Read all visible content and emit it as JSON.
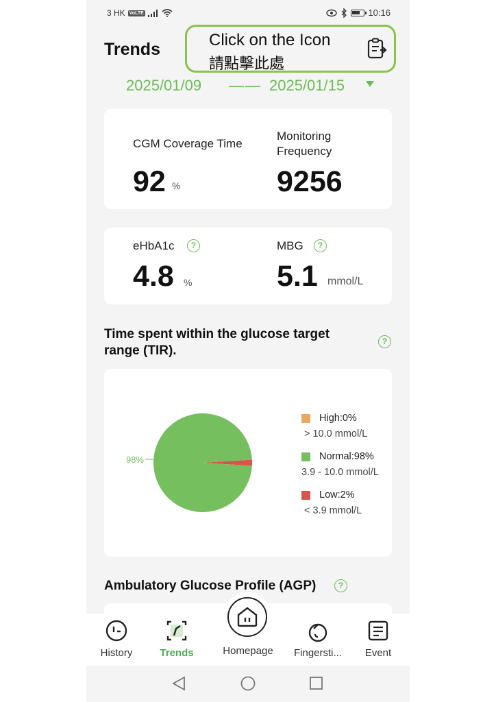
{
  "status_bar": {
    "carrier": "3 HK",
    "volte": "VoLTE",
    "time": "10:16"
  },
  "header": {
    "title": "Trends",
    "callout_line1": "Click on the Icon",
    "callout_line2": "請點擊此處",
    "report_icon": "report-document-icon"
  },
  "date_range": {
    "start": "2025/01/09",
    "separator": "——",
    "end": "2025/01/15"
  },
  "coverage_card": {
    "cgm_label": "CGM Coverage Time",
    "cgm_value": "92",
    "cgm_unit": "%",
    "freq_label_line1": "Monitoring",
    "freq_label_line2": "Frequency",
    "freq_value": "9256"
  },
  "glucose_card": {
    "ehba1c_label": "eHbA1c",
    "ehba1c_value": "4.8",
    "ehba1c_unit": "%",
    "mbg_label": "MBG",
    "mbg_value": "5.1",
    "mbg_unit": "mmol/L",
    "help_glyph": "?"
  },
  "tir": {
    "title": "Time spent within the glucose target range (TIR).",
    "help_glyph": "?"
  },
  "chart_data": {
    "type": "pie",
    "slices": [
      {
        "label": "High:0%",
        "range": "> 10.0 mmol/L",
        "value": 0,
        "color": "#e8a95c"
      },
      {
        "label": "Normal:98%",
        "range": "3.9 - 10.0 mmol/L",
        "value": 98,
        "color": "#76bf5e"
      },
      {
        "label": "Low:2%",
        "range": "< 3.9 mmol/L",
        "value": 2,
        "color": "#d9534a"
      }
    ],
    "annotation": "98%",
    "legend_position": "right"
  },
  "agp": {
    "title": "Ambulatory Glucose Profile (AGP)",
    "help_glyph": "?"
  },
  "bottom_nav": {
    "items": [
      {
        "label": "History",
        "icon": "history-clock-icon"
      },
      {
        "label": "Trends",
        "icon": "trends-chart-icon"
      },
      {
        "label": "Homepage",
        "icon": "home-icon"
      },
      {
        "label": "Fingersti...",
        "icon": "blood-drop-icon"
      },
      {
        "label": "Event",
        "icon": "event-list-icon"
      }
    ],
    "active": "Trends"
  },
  "colors": {
    "accent": "#6dbb5a",
    "callout_border": "#8ac24a",
    "active_nav": "#4caf50",
    "background": "#f4f4f4"
  }
}
